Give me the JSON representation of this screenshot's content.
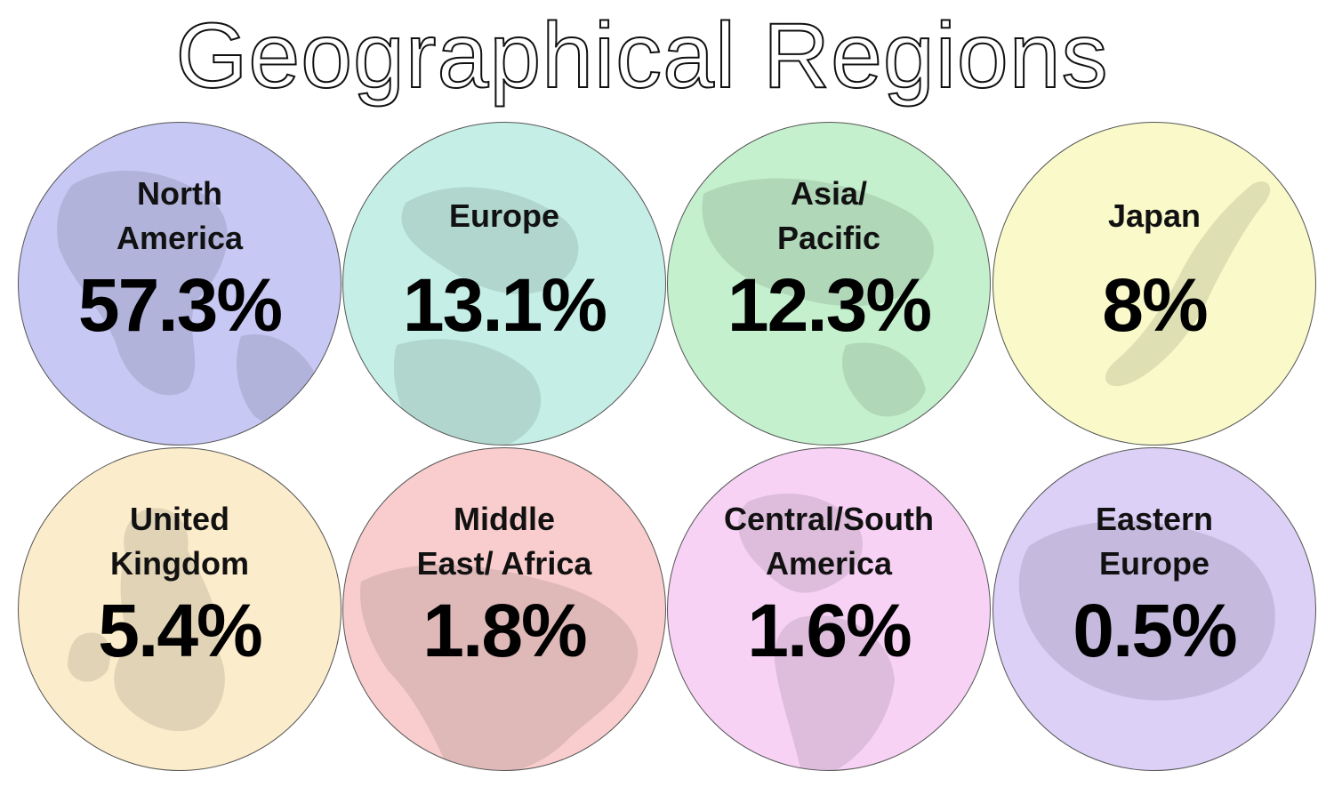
{
  "title": "Geographical Regions",
  "chart_data": {
    "type": "table",
    "title": "Geographical Regions",
    "unit": "%",
    "categories": [
      "North America",
      "Europe",
      "Asia/ Pacific",
      "Japan",
      "United Kingdom",
      "Middle East/ Africa",
      "Central/South America",
      "Eastern Europe"
    ],
    "values": [
      57.3,
      13.1,
      12.3,
      8,
      5.4,
      1.8,
      1.6,
      0.5
    ],
    "regions": [
      {
        "label_lines": [
          "North",
          "America"
        ],
        "value": "57.3%",
        "color": "#c7c8f4"
      },
      {
        "label_lines": [
          "Europe"
        ],
        "value": "13.1%",
        "color": "#c5efe6"
      },
      {
        "label_lines": [
          "Asia/",
          "Pacific"
        ],
        "value": "12.3%",
        "color": "#c4f0cd"
      },
      {
        "label_lines": [
          "Japan"
        ],
        "value": "8%",
        "color": "#f9f9c9"
      },
      {
        "label_lines": [
          "United",
          "Kingdom"
        ],
        "value": "5.4%",
        "color": "#fbeccb"
      },
      {
        "label_lines": [
          "Middle",
          "East/ Africa"
        ],
        "value": "1.8%",
        "color": "#f9cdcd"
      },
      {
        "label_lines": [
          "Central/South",
          "America"
        ],
        "value": "1.6%",
        "color": "#f7d2f5"
      },
      {
        "label_lines": [
          "Eastern",
          "Europe"
        ],
        "value": "0.5%",
        "color": "#dcd0f6"
      }
    ]
  }
}
